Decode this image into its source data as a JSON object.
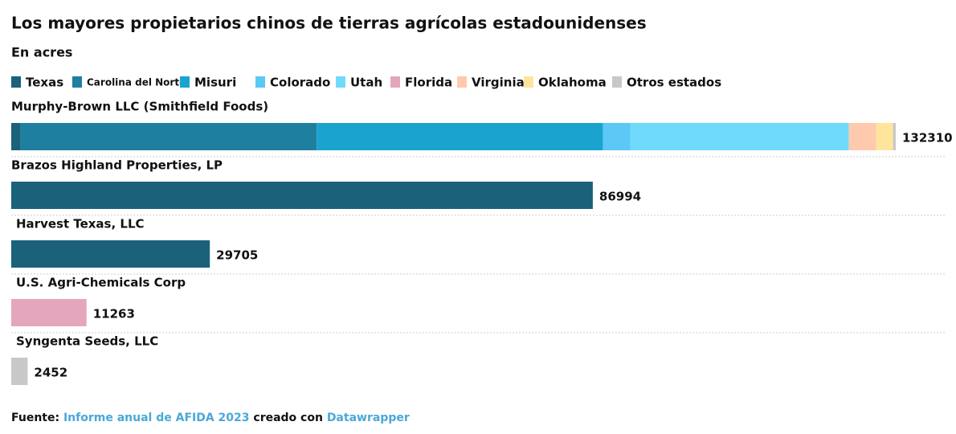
{
  "chart_data": {
    "type": "stacked-bar-horizontal",
    "title": "Los mayores propietarios chinos de tierras agrícolas estadounidenses",
    "subtitle": "En acres",
    "categories": [
      "Murphy-Brown LLC (Smithfield Foods)",
      "Brazos Highland Properties, LP",
      "Harvest Texas, LLC",
      "U.S. Agri-Chemicals Corp",
      "Syngenta Seeds, LLC"
    ],
    "series": [
      {
        "name": "Texas",
        "color": "#1a6179",
        "values": [
          1400,
          86994,
          29705,
          0,
          0
        ]
      },
      {
        "name": "Carolina del Norte",
        "color": "#1f7fa0",
        "values": [
          44300,
          0,
          0,
          0,
          0
        ]
      },
      {
        "name": "Misuri",
        "color": "#1ba3d0",
        "values": [
          42800,
          0,
          0,
          0,
          0
        ]
      },
      {
        "name": "Colorado",
        "color": "#5bc8f5",
        "values": [
          4100,
          0,
          0,
          0,
          0
        ]
      },
      {
        "name": "Utah",
        "color": "#6fdafc",
        "values": [
          32700,
          0,
          0,
          0,
          0
        ]
      },
      {
        "name": "Florida",
        "color": "#e4a6bd",
        "values": [
          0,
          0,
          0,
          11263,
          0
        ]
      },
      {
        "name": "Virginia",
        "color": "#ffc9ad",
        "values": [
          4100,
          0,
          0,
          0,
          0
        ]
      },
      {
        "name": "Oklahoma",
        "color": "#ffe49c",
        "values": [
          2500,
          0,
          0,
          0,
          0
        ]
      },
      {
        "name": "Otros estados",
        "color": "#c8c8c8",
        "values": [
          410,
          0,
          0,
          0,
          2452
        ]
      }
    ],
    "totals": [
      132310,
      86994,
      29705,
      11263,
      2452
    ],
    "footer": {
      "source_label": "Fuente:",
      "source_link": "Informe anual de AFIDA 2023",
      "created_with": "creado con",
      "tool_link": "Datawrapper"
    }
  }
}
